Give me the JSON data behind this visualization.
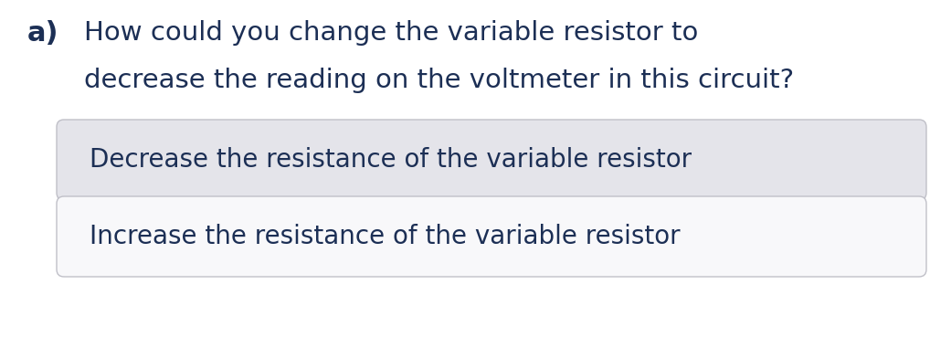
{
  "background_color": "#ffffff",
  "question_label": "a)",
  "question_line1": "How could you change the variable resistor to",
  "question_line2": "decrease the reading on the voltmeter in this circuit?",
  "question_color": "#1c2f55",
  "label_color": "#1c2f55",
  "option1_text": "Decrease the resistance of the variable resistor",
  "option2_text": "Increase the resistance of the variable resistor",
  "option1_bg": "#e4e4ea",
  "option2_bg": "#f8f8fa",
  "option_border_color": "#c0c0c8",
  "option_text_color": "#1c2f55",
  "question_fontsize": 21,
  "label_fontsize": 22,
  "option_fontsize": 20,
  "fig_width": 10.18,
  "fig_height": 3.69,
  "dpi": 100
}
